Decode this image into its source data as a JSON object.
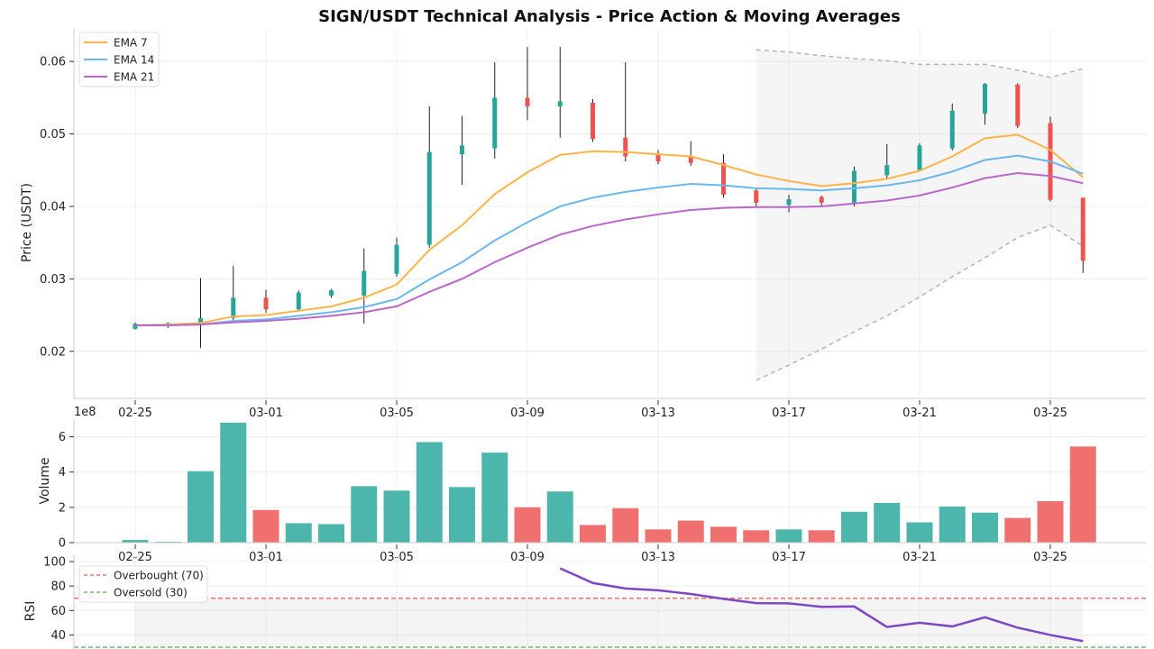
{
  "chart_data": {
    "title": "SIGN/USDT Technical Analysis - Price Action & Moving Averages",
    "dates": [
      "02-25",
      "02-26",
      "02-27",
      "02-28",
      "03-01",
      "03-02",
      "03-03",
      "03-04",
      "03-05",
      "03-06",
      "03-07",
      "03-08",
      "03-09",
      "03-10",
      "03-11",
      "03-12",
      "03-13",
      "03-14",
      "03-15",
      "03-16",
      "03-17",
      "03-18",
      "03-19",
      "03-20",
      "03-21",
      "03-22",
      "03-23",
      "03-24",
      "03-25",
      "03-26"
    ],
    "x_tick_labels": [
      "02-25",
      "03-01",
      "03-05",
      "03-09",
      "03-13",
      "03-17",
      "03-21",
      "03-25"
    ],
    "price_panel": {
      "type": "candlestick",
      "ylabel": "Price (USDT)",
      "ylim": [
        0.014,
        0.064
      ],
      "yticks": [
        0.02,
        0.03,
        0.04,
        0.05,
        0.06
      ],
      "ytick_labels": [
        "0.02",
        "0.03",
        "0.04",
        "0.05",
        "0.06"
      ],
      "up_color": "#26a69a",
      "down_color": "#ef5350",
      "candles": [
        {
          "o": 0.0231,
          "h": 0.024,
          "l": 0.023,
          "c": 0.0238
        },
        {
          "o": 0.0235,
          "h": 0.024,
          "l": 0.0232,
          "c": 0.0239
        },
        {
          "o": 0.0238,
          "h": 0.0301,
          "l": 0.0205,
          "c": 0.0246
        },
        {
          "o": 0.0246,
          "h": 0.0318,
          "l": 0.0239,
          "c": 0.0274
        },
        {
          "o": 0.0274,
          "h": 0.0285,
          "l": 0.0253,
          "c": 0.0258
        },
        {
          "o": 0.0258,
          "h": 0.0284,
          "l": 0.0255,
          "c": 0.0281
        },
        {
          "o": 0.0277,
          "h": 0.0286,
          "l": 0.0274,
          "c": 0.0284
        },
        {
          "o": 0.0277,
          "h": 0.0342,
          "l": 0.0238,
          "c": 0.0311
        },
        {
          "o": 0.0307,
          "h": 0.0357,
          "l": 0.0303,
          "c": 0.0347
        },
        {
          "o": 0.0347,
          "h": 0.0538,
          "l": 0.0343,
          "c": 0.0475
        },
        {
          "o": 0.0472,
          "h": 0.0525,
          "l": 0.043,
          "c": 0.0484
        },
        {
          "o": 0.048,
          "h": 0.0599,
          "l": 0.0466,
          "c": 0.055
        },
        {
          "o": 0.055,
          "h": 0.062,
          "l": 0.0519,
          "c": 0.0538
        },
        {
          "o": 0.0538,
          "h": 0.062,
          "l": 0.0495,
          "c": 0.0545
        },
        {
          "o": 0.0543,
          "h": 0.0548,
          "l": 0.0489,
          "c": 0.0493
        },
        {
          "o": 0.0495,
          "h": 0.0599,
          "l": 0.0462,
          "c": 0.0469
        },
        {
          "o": 0.0473,
          "h": 0.0478,
          "l": 0.0458,
          "c": 0.0462
        },
        {
          "o": 0.0469,
          "h": 0.049,
          "l": 0.0456,
          "c": 0.046
        },
        {
          "o": 0.046,
          "h": 0.0472,
          "l": 0.0412,
          "c": 0.0416
        },
        {
          "o": 0.0422,
          "h": 0.0425,
          "l": 0.04,
          "c": 0.0405
        },
        {
          "o": 0.0402,
          "h": 0.0416,
          "l": 0.0392,
          "c": 0.041
        },
        {
          "o": 0.0413,
          "h": 0.0415,
          "l": 0.0401,
          "c": 0.0405
        },
        {
          "o": 0.0405,
          "h": 0.0455,
          "l": 0.04,
          "c": 0.0449
        },
        {
          "o": 0.0443,
          "h": 0.0486,
          "l": 0.0437,
          "c": 0.0457
        },
        {
          "o": 0.045,
          "h": 0.0487,
          "l": 0.0448,
          "c": 0.0484
        },
        {
          "o": 0.048,
          "h": 0.0542,
          "l": 0.0477,
          "c": 0.0532
        },
        {
          "o": 0.0528,
          "h": 0.057,
          "l": 0.0513,
          "c": 0.0569
        },
        {
          "o": 0.0568,
          "h": 0.057,
          "l": 0.0508,
          "c": 0.0511
        },
        {
          "o": 0.0515,
          "h": 0.0524,
          "l": 0.0407,
          "c": 0.0409
        },
        {
          "o": 0.0412,
          "h": 0.0412,
          "l": 0.0308,
          "c": 0.0325
        }
      ],
      "ema": [
        {
          "name": "EMA 7",
          "color": "#ffb347",
          "values": [
            0.0236,
            0.0237,
            0.0239,
            0.0248,
            0.025,
            0.0256,
            0.0262,
            0.0274,
            0.0292,
            0.034,
            0.0374,
            0.0417,
            0.0447,
            0.0471,
            0.0476,
            0.0475,
            0.0472,
            0.0469,
            0.0457,
            0.0444,
            0.0435,
            0.0428,
            0.0432,
            0.0438,
            0.0449,
            0.0469,
            0.0494,
            0.0499,
            0.0478,
            0.044
          ]
        },
        {
          "name": "EMA 14",
          "color": "#6ab7ee",
          "values": [
            0.0236,
            0.0236,
            0.0237,
            0.0242,
            0.0244,
            0.0249,
            0.0254,
            0.0261,
            0.0272,
            0.0299,
            0.0323,
            0.0353,
            0.0378,
            0.04,
            0.0412,
            0.042,
            0.0426,
            0.0431,
            0.0429,
            0.0425,
            0.0424,
            0.0422,
            0.0425,
            0.0429,
            0.0436,
            0.0448,
            0.0464,
            0.047,
            0.0462,
            0.0445
          ]
        },
        {
          "name": "EMA 21",
          "color": "#ba68c8",
          "values": [
            0.0236,
            0.0236,
            0.0237,
            0.024,
            0.0242,
            0.0245,
            0.0249,
            0.0254,
            0.0262,
            0.0282,
            0.03,
            0.0323,
            0.0343,
            0.0361,
            0.0373,
            0.0382,
            0.0389,
            0.0395,
            0.0398,
            0.0399,
            0.0399,
            0.04,
            0.0404,
            0.0408,
            0.0415,
            0.0426,
            0.0439,
            0.0446,
            0.0442,
            0.0432
          ]
        }
      ],
      "band": {
        "start_index": 19,
        "end_index": 29,
        "upper": [
          0.0616,
          0.0613,
          0.0608,
          0.0604,
          0.0601,
          0.0596,
          0.0596,
          0.0596,
          0.0588,
          0.0578,
          0.059
        ],
        "lower": [
          0.016,
          0.0181,
          0.0203,
          0.0227,
          0.0249,
          0.0275,
          0.0303,
          0.0329,
          0.0357,
          0.0374,
          0.0345
        ]
      },
      "legend_position": "top-left"
    },
    "volume_panel": {
      "type": "bar",
      "ylabel": "Volume",
      "scale_label": "1e8",
      "ylim": [
        0,
        7
      ],
      "yticks": [
        0,
        2,
        4,
        6
      ],
      "ytick_labels": [
        "0",
        "2",
        "4",
        "6"
      ],
      "values": [
        0.15,
        0.05,
        4.05,
        6.8,
        1.85,
        1.1,
        1.05,
        3.2,
        2.95,
        5.7,
        3.15,
        5.1,
        2.0,
        2.9,
        1.0,
        1.95,
        0.75,
        1.25,
        0.9,
        0.7,
        0.75,
        0.7,
        1.75,
        2.25,
        1.15,
        2.05,
        1.7,
        1.4,
        2.35,
        5.45
      ],
      "up_color": "#4db6ac",
      "down_color": "#f07070"
    },
    "rsi_panel": {
      "type": "line",
      "ylabel": "RSI",
      "ylim": [
        30,
        100
      ],
      "yticks": [
        40,
        60,
        80,
        100
      ],
      "ytick_labels": [
        "40",
        "60",
        "80",
        "100"
      ],
      "start_index": 13,
      "values": [
        94.5,
        82.5,
        78.0,
        76.5,
        73.5,
        69.5,
        66.0,
        65.8,
        63.0,
        63.3,
        46.5,
        50.0,
        47.0,
        54.5,
        46.0,
        40.0,
        35.0
      ],
      "line_color": "#7e48c4",
      "overbought": {
        "label": "Overbought (70)",
        "value": 70,
        "color": "#ef5350"
      },
      "oversold": {
        "label": "Oversold (30)",
        "value": 30,
        "color": "#4caf50"
      }
    }
  }
}
